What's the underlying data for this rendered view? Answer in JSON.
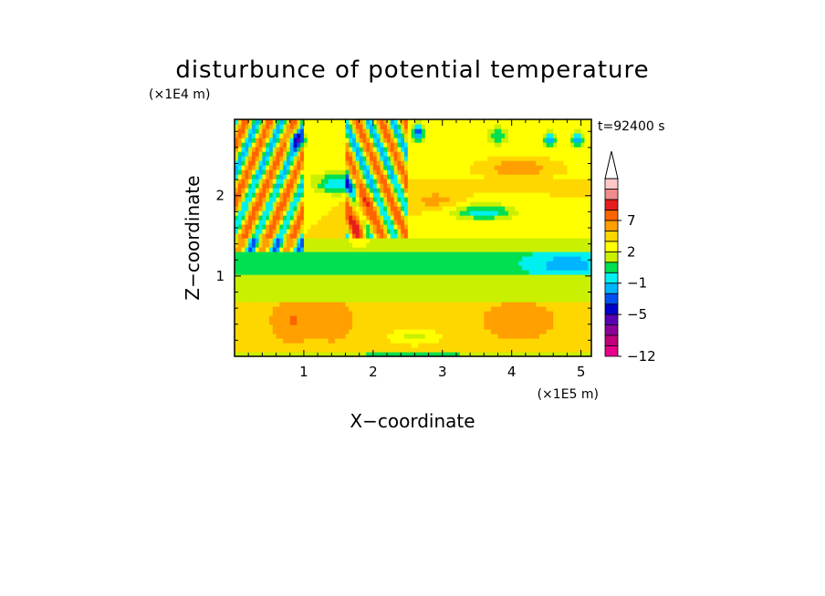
{
  "chart_data": {
    "type": "heatmap",
    "title": "disturbunce of potential temperature",
    "time_label": "t=92400 s",
    "xlabel": "X−coordinate",
    "ylabel": "Z−coordinate",
    "x_unit": "(×1E5 m)",
    "y_unit": "(×1E4 m)",
    "xlim": [
      0,
      5.15
    ],
    "ylim": [
      0,
      2.95
    ],
    "x_ticks": [
      {
        "value": 1,
        "label": "1"
      },
      {
        "value": 2,
        "label": "2"
      },
      {
        "value": 3,
        "label": "3"
      },
      {
        "value": 4,
        "label": "4"
      },
      {
        "value": 5,
        "label": "5"
      }
    ],
    "y_ticks": [
      {
        "value": 1,
        "label": "1"
      },
      {
        "value": 2,
        "label": "2"
      }
    ],
    "colorbar": {
      "levels": [
        -12,
        -11,
        -9,
        -7,
        -5,
        -3,
        -2,
        -1,
        0,
        1,
        2,
        3,
        5,
        7,
        9,
        11
      ],
      "colors": [
        "#e8008c",
        "#c0007c",
        "#8c0096",
        "#5a00b4",
        "#0000c8",
        "#0050f0",
        "#00b4ff",
        "#00f0f0",
        "#00e050",
        "#c8f000",
        "#ffff00",
        "#ffd700",
        "#ffa000",
        "#ff6400",
        "#e61e1e",
        "#f08c8c",
        "#ffc8c8",
        "#ffffff"
      ],
      "labels": [
        {
          "value": -12,
          "label": "−12"
        },
        {
          "value": -5,
          "label": "−5"
        },
        {
          "value": -1,
          "label": "−1"
        },
        {
          "value": 2,
          "label": "2"
        },
        {
          "value": 7,
          "label": "7"
        }
      ]
    },
    "field": {
      "nx": 103,
      "nz": 52,
      "features": [
        {
          "kind": "band",
          "z0": 0.05,
          "z1": 0.7,
          "value": 2.6
        },
        {
          "kind": "band",
          "z0": 0.7,
          "z1": 1.0,
          "value": 0.4
        },
        {
          "kind": "band",
          "z0": 1.0,
          "z1": 1.3,
          "value": -0.8
        },
        {
          "kind": "band",
          "z0": 1.3,
          "z1": 1.5,
          "value": 0.5
        },
        {
          "kind": "band",
          "z0": 1.5,
          "z1": 2.2,
          "value": 2.0
        },
        {
          "kind": "band",
          "z0": 2.2,
          "z1": 2.95,
          "value": 1.6
        },
        {
          "kind": "blob",
          "x": 4.1,
          "z": 2.35,
          "sx": 0.55,
          "sz": 0.12,
          "value": 2.2
        },
        {
          "kind": "blob",
          "x": 3.6,
          "z": 1.8,
          "sx": 0.45,
          "sz": 0.1,
          "value": -3.6
        },
        {
          "kind": "blob",
          "x": 2.9,
          "z": 1.95,
          "sx": 0.3,
          "sz": 0.1,
          "value": 1.6
        },
        {
          "kind": "blob",
          "x": 4.8,
          "z": 1.15,
          "sx": 0.45,
          "sz": 0.12,
          "value": -2.0
        },
        {
          "kind": "blob",
          "x": 1.5,
          "z": 2.15,
          "sx": 0.35,
          "sz": 0.12,
          "value": -4.0
        },
        {
          "kind": "blob",
          "x": 1.8,
          "z": 1.75,
          "sx": 0.15,
          "sz": 0.3,
          "value": 3.5
        },
        {
          "kind": "blob",
          "x": 0.85,
          "z": 0.45,
          "sx": 0.25,
          "sz": 0.2,
          "value": 2.5
        },
        {
          "kind": "blob",
          "x": 1.4,
          "z": 0.45,
          "sx": 0.25,
          "sz": 0.2,
          "value": 2.0
        },
        {
          "kind": "blob",
          "x": 4.1,
          "z": 0.45,
          "sx": 0.45,
          "sz": 0.2,
          "value": 1.5
        },
        {
          "kind": "blob",
          "x": 2.6,
          "z": 0.25,
          "sx": 0.35,
          "sz": 0.1,
          "value": -2.0
        },
        {
          "kind": "blob",
          "x": 0.9,
          "z": 2.7,
          "sx": 0.12,
          "sz": 0.1,
          "value": -5.0
        },
        {
          "kind": "blob",
          "x": 2.65,
          "z": 2.8,
          "sx": 0.08,
          "sz": 0.1,
          "value": -5.5
        },
        {
          "kind": "blob",
          "x": 3.8,
          "z": 2.75,
          "sx": 0.12,
          "sz": 0.1,
          "value": -2.5
        },
        {
          "kind": "blob",
          "x": 4.55,
          "z": 2.7,
          "sx": 0.08,
          "sz": 0.08,
          "value": -4.5
        },
        {
          "kind": "blob",
          "x": 4.95,
          "z": 2.7,
          "sx": 0.08,
          "sz": 0.08,
          "value": -4.5
        },
        {
          "kind": "wave",
          "x0": 0.0,
          "x1": 1.0,
          "z0": 1.3,
          "z1": 2.95,
          "amp": 4.0,
          "kx": 18,
          "kz": -9
        },
        {
          "kind": "wave",
          "x0": 1.6,
          "x1": 2.5,
          "z0": 1.5,
          "z1": 2.95,
          "amp": 4.0,
          "kx": 18,
          "kz": 9
        }
      ]
    }
  }
}
